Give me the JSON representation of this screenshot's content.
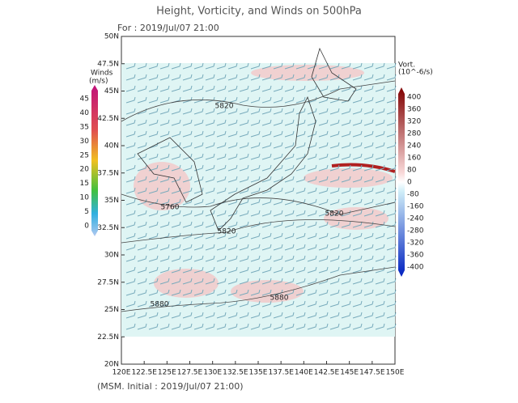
{
  "header": {
    "title": "Height, Vorticity, and Winds on 500hPa",
    "valid": "For : 2019/Jul/07 21:00"
  },
  "lat_labels": [
    "50N",
    "47.5N",
    "45N",
    "42.5N",
    "40N",
    "37.5N",
    "35N",
    "32.5N",
    "30N",
    "27.5N",
    "25N",
    "22.5N",
    "20N"
  ],
  "lon_labels": [
    "120E",
    "122.5E",
    "125E",
    "127.5E",
    "130E",
    "132.5E",
    "135E",
    "137.5E",
    "140E",
    "142.5E",
    "145E",
    "147.5E",
    "150E"
  ],
  "wind_bar": {
    "title": "Winds",
    "unit": "(m/s)",
    "labels": [
      45,
      40,
      35,
      30,
      25,
      20,
      15,
      10,
      5,
      0
    ]
  },
  "vort_bar": {
    "title": "Vort.",
    "unit": "(10^-6/s)",
    "labels": [
      400,
      360,
      320,
      280,
      240,
      160,
      80,
      0,
      -80,
      -160,
      -240,
      -280,
      -320,
      -360,
      -400
    ]
  },
  "contour_labels": [
    "5820",
    "5760",
    "5820",
    "5820",
    "5880",
    "5880"
  ],
  "footer": "(MSM. Initial : 2019/Jul/07 21:00)"
}
